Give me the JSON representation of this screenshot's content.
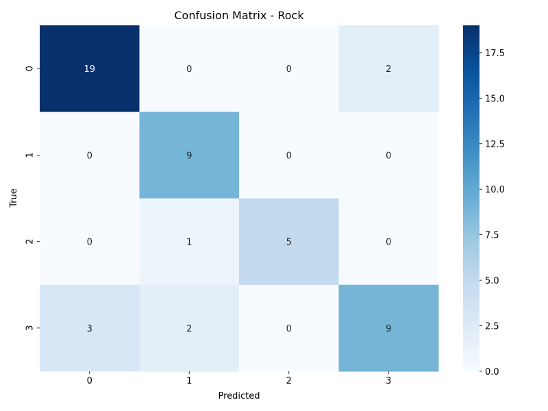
{
  "chart_data": {
    "type": "heatmap",
    "title": "Confusion Matrix - Rock",
    "xlabel": "Predicted",
    "ylabel": "True",
    "x_categories": [
      "0",
      "1",
      "2",
      "3"
    ],
    "y_categories": [
      "0",
      "1",
      "2",
      "3"
    ],
    "values": [
      [
        19,
        0,
        0,
        2
      ],
      [
        0,
        9,
        0,
        0
      ],
      [
        0,
        1,
        5,
        0
      ],
      [
        3,
        2,
        0,
        9
      ]
    ],
    "colormap": "Blues",
    "vmin": 0,
    "vmax": 19,
    "colorbar_ticks": [
      "0.0",
      "2.5",
      "5.0",
      "7.5",
      "10.0",
      "12.5",
      "15.0",
      "17.5"
    ],
    "grid": false,
    "legend": "colorbar-right"
  }
}
